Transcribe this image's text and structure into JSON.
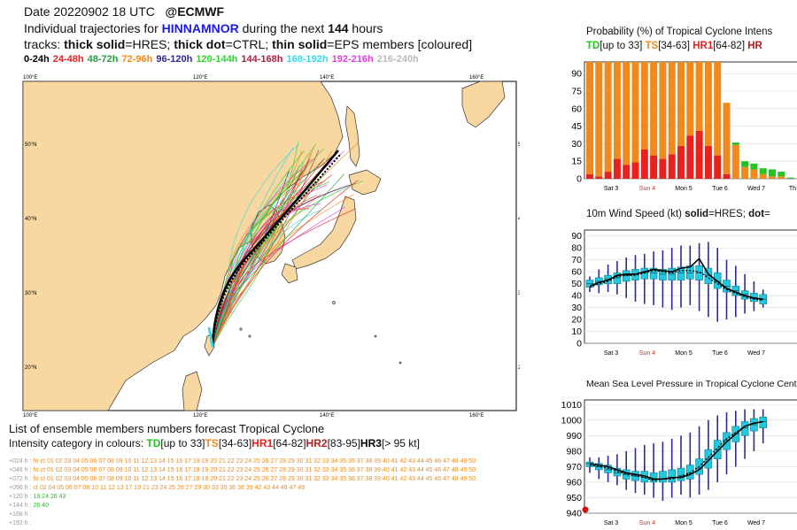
{
  "header": {
    "date_line": "Date 20220902 18 UTC",
    "source": "@ECMWF",
    "line2_prefix": "Individual trajectories for",
    "storm_name": "HINNAMNOR",
    "line2_mid": "during the next",
    "hours": "144",
    "line2_suffix": "hours",
    "line3_prefix": "tracks:",
    "thick_solid": "thick solid",
    "hres": "=HRES;",
    "thick_dot": "thick dot",
    "ctrl": "=CTRL;",
    "thin_solid": "thin solid",
    "eps": "=EPS members [coloured]"
  },
  "time_legend": [
    {
      "label": "0-24h",
      "color": "#000000"
    },
    {
      "label": "24-48h",
      "color": "#e8201e"
    },
    {
      "label": "48-72h",
      "color": "#22a03a"
    },
    {
      "label": "72-96h",
      "color": "#f08a1c"
    },
    {
      "label": "96-120h",
      "color": "#2a2a9a"
    },
    {
      "label": "120-144h",
      "color": "#32d232"
    },
    {
      "label": "144-168h",
      "color": "#b01e3c"
    },
    {
      "label": "168-192h",
      "color": "#3ad8e8"
    },
    {
      "label": "192-216h",
      "color": "#e040e0"
    },
    {
      "label": "216-240h",
      "color": "#bbbbbb"
    }
  ],
  "map": {
    "lon_labels": [
      "100°E",
      "120°E",
      "140°E",
      "160°E"
    ],
    "lat_labels": [
      "50°N",
      "40°N",
      "30°N",
      "20°N"
    ]
  },
  "bottom": {
    "line1": "List of ensemble members numbers forecast Tropical Cyclone",
    "line2_prefix": "Intensity category in colours:",
    "cats": [
      {
        "name": "TD",
        "range": "[up to 33]",
        "color": "#22c322"
      },
      {
        "name": "TS",
        "range": "[34-63]",
        "color": "#f08a1c"
      },
      {
        "name": "HR1",
        "range": "[64-82]",
        "color": "#e8201e"
      },
      {
        "name": "HR2",
        "range": "[83-95]",
        "color": "#b01e1e"
      },
      {
        "name": "HR3",
        "range": "[> 95 kt]",
        "color": "#000000"
      }
    ],
    "rows": [
      {
        "label": "+024 h :",
        "text": "hr ct 01 02 03 04 05 06 07 08 09 10 11 12 13 14 15 16 17 18 19 20 21 22 23 24 25 26 27 28 29 30 31 32 33 34 35 36 37 38 39 40 41 42 43 44 45 46 47 48 49 50"
      },
      {
        "label": "+048 h :",
        "text": "hr ct 01 02 03 04 05 06 07 08 09 10 11 12 13 14 15 16 17 18 19 20 21 22 23 24 25 26 27 28 29 30 31 32 33 34 35 36 37 38 39 40 41 42 43 44 45 46 47 48 49 50"
      },
      {
        "label": "+072 h :",
        "text": "hr ct 01 02 03 04 05 06 07 08 09 10 11 12 13 14 15 16 17 18 19 20 21 22 23 24 25 26 27 28 29 30 31 32 33 34 35 36 37 38 39 40 41 42 43 44 45 46 47 48 49 50"
      },
      {
        "label": "+096 h :",
        "text": "ct 02 04 05 06 07 08 10 11 12 13 17 19 21 23 24 25 26 27 29 30 33 35 36 38 39 42 43 44 46 47 49"
      },
      {
        "label": "+120 h :",
        "text": "19 24 26 43"
      },
      {
        "label": "+144 h :",
        "text": "26 40"
      },
      {
        "label": "+168 h :",
        "text": ""
      },
      {
        "label": "+192 h :",
        "text": ""
      }
    ]
  },
  "chart_data": [
    {
      "type": "bar",
      "title": "Probability (%) of Tropical Cyclone Intens",
      "legend": [
        {
          "name": "TD",
          "range": "[up to 33]",
          "color": "#22c322"
        },
        {
          "name": "TS",
          "range": "[34-63]",
          "color": "#f08a1c"
        },
        {
          "name": "HR1",
          "range": "[64-82]",
          "color": "#e8201e"
        },
        {
          "name": "HR",
          "range": "",
          "color": "#b01e1e"
        }
      ],
      "ylim": [
        0,
        100
      ],
      "yticks": [
        0,
        15,
        30,
        45,
        60,
        75,
        90
      ],
      "xlabels": [
        {
          "label": "Sat 3",
          "color": "#000000"
        },
        {
          "label": "Sun 4",
          "color": "#e8201e"
        },
        {
          "label": "Mon 5",
          "color": "#000000"
        },
        {
          "label": "Tue 6",
          "color": "#000000"
        },
        {
          "label": "Wed 7",
          "color": "#000000"
        },
        {
          "label": "Th",
          "color": "#000000"
        }
      ],
      "series": [
        {
          "name": "HR1",
          "color": "#e8201e",
          "values": [
            4,
            2,
            6,
            17,
            12,
            14,
            25,
            20,
            17,
            21,
            28,
            37,
            41,
            28,
            20,
            4,
            0,
            0,
            0,
            0,
            0,
            0,
            0
          ]
        },
        {
          "name": "TS",
          "color": "#f08a1c",
          "values": [
            96,
            98,
            94,
            83,
            88,
            86,
            75,
            80,
            83,
            79,
            72,
            63,
            59,
            72,
            80,
            61,
            29,
            10,
            8,
            4,
            2,
            2,
            0
          ]
        },
        {
          "name": "TD",
          "color": "#22c322",
          "values": [
            0,
            0,
            0,
            0,
            0,
            0,
            0,
            0,
            0,
            0,
            0,
            0,
            0,
            0,
            0,
            0,
            2,
            5,
            5,
            5,
            6,
            4,
            1
          ]
        }
      ]
    },
    {
      "type": "line",
      "title": "10m Wind Speed (kt)",
      "title_parts": {
        "solid": "solid",
        "hres": "=HRES;",
        "dot": "dot",
        "rest": "="
      },
      "ylim": [
        0,
        95
      ],
      "yticks": [
        0,
        10,
        20,
        30,
        40,
        50,
        60,
        70,
        80,
        90
      ],
      "xlabels": [
        {
          "label": "Sat 3",
          "color": "#000000"
        },
        {
          "label": "Sun 4",
          "color": "#e8201e"
        },
        {
          "label": "Mon 5",
          "color": "#000000"
        },
        {
          "label": "Tue 6",
          "color": "#000000"
        },
        {
          "label": "Wed 7",
          "color": "#000000"
        }
      ],
      "box_color": "#22c8e0",
      "boxes": [
        {
          "t": 0,
          "min": 43,
          "q1": 47,
          "med": 50,
          "q3": 53,
          "max": 56
        },
        {
          "t": 1,
          "min": 42,
          "q1": 49,
          "med": 52,
          "q3": 55,
          "max": 62
        },
        {
          "t": 2,
          "min": 43,
          "q1": 50,
          "med": 54,
          "q3": 57,
          "max": 66
        },
        {
          "t": 3,
          "min": 41,
          "q1": 50,
          "med": 55,
          "q3": 59,
          "max": 69
        },
        {
          "t": 4,
          "min": 38,
          "q1": 52,
          "med": 57,
          "q3": 61,
          "max": 72
        },
        {
          "t": 5,
          "min": 35,
          "q1": 53,
          "med": 58,
          "q3": 62,
          "max": 74
        },
        {
          "t": 6,
          "min": 33,
          "q1": 54,
          "med": 59,
          "q3": 63,
          "max": 75
        },
        {
          "t": 7,
          "min": 32,
          "q1": 54,
          "med": 59,
          "q3": 63,
          "max": 77
        },
        {
          "t": 8,
          "min": 30,
          "q1": 53,
          "med": 58,
          "q3": 62,
          "max": 78
        },
        {
          "t": 9,
          "min": 28,
          "q1": 53,
          "med": 58,
          "q3": 63,
          "max": 80
        },
        {
          "t": 10,
          "min": 30,
          "q1": 53,
          "med": 59,
          "q3": 64,
          "max": 82
        },
        {
          "t": 11,
          "min": 32,
          "q1": 54,
          "med": 59,
          "q3": 65,
          "max": 82
        },
        {
          "t": 12,
          "min": 27,
          "q1": 53,
          "med": 59,
          "q3": 65,
          "max": 84
        },
        {
          "t": 13,
          "min": 22,
          "q1": 50,
          "med": 57,
          "q3": 63,
          "max": 85
        },
        {
          "t": 14,
          "min": 18,
          "q1": 46,
          "med": 52,
          "q3": 59,
          "max": 80
        },
        {
          "t": 15,
          "min": 20,
          "q1": 43,
          "med": 48,
          "q3": 53,
          "max": 70
        },
        {
          "t": 16,
          "min": 22,
          "q1": 40,
          "med": 44,
          "q3": 48,
          "max": 65
        },
        {
          "t": 17,
          "min": 25,
          "q1": 37,
          "med": 41,
          "q3": 44,
          "max": 58
        },
        {
          "t": 18,
          "min": 27,
          "q1": 35,
          "med": 38,
          "q3": 42,
          "max": 52
        },
        {
          "t": 19,
          "min": 30,
          "q1": 33,
          "med": 37,
          "q3": 41,
          "max": 45
        }
      ],
      "hres": [
        48,
        51,
        53,
        57,
        58,
        58,
        60,
        62,
        61,
        60,
        63,
        64,
        71,
        58,
        52,
        46,
        43,
        40,
        38,
        37
      ],
      "ctrl": [
        47,
        50,
        52,
        56,
        57,
        57,
        59,
        61,
        60,
        59,
        61,
        61,
        60,
        55,
        50,
        45,
        42,
        39,
        37,
        36
      ]
    },
    {
      "type": "line",
      "title": "Mean Sea Level Pressure in Tropical Cyclone Cent",
      "ylim": [
        940,
        1013
      ],
      "yticks": [
        940,
        950,
        960,
        970,
        980,
        990,
        1000,
        1010
      ],
      "xlabels": [
        {
          "label": "Sat 3",
          "color": "#000000"
        },
        {
          "label": "Sun 4",
          "color": "#e8201e"
        },
        {
          "label": "Mon 5",
          "color": "#000000"
        },
        {
          "label": "Tue 6",
          "color": "#000000"
        },
        {
          "label": "Wed 7",
          "color": "#000000"
        }
      ],
      "box_color": "#22c8e0",
      "boxes": [
        {
          "t": 0,
          "min": 966,
          "q1": 970,
          "med": 972,
          "q3": 973,
          "max": 976
        },
        {
          "t": 1,
          "min": 962,
          "q1": 968,
          "med": 970,
          "q3": 972,
          "max": 976
        },
        {
          "t": 2,
          "min": 960,
          "q1": 966,
          "med": 968,
          "q3": 971,
          "max": 977
        },
        {
          "t": 3,
          "min": 958,
          "q1": 964,
          "med": 966,
          "q3": 969,
          "max": 978
        },
        {
          "t": 4,
          "min": 955,
          "q1": 962,
          "med": 965,
          "q3": 968,
          "max": 980
        },
        {
          "t": 5,
          "min": 953,
          "q1": 961,
          "med": 964,
          "q3": 967,
          "max": 982
        },
        {
          "t": 6,
          "min": 952,
          "q1": 960,
          "med": 963,
          "q3": 967,
          "max": 984
        },
        {
          "t": 7,
          "min": 950,
          "q1": 960,
          "med": 962,
          "q3": 966,
          "max": 985
        },
        {
          "t": 8,
          "min": 948,
          "q1": 960,
          "med": 962,
          "q3": 967,
          "max": 986
        },
        {
          "t": 9,
          "min": 950,
          "q1": 960,
          "med": 963,
          "q3": 968,
          "max": 988
        },
        {
          "t": 10,
          "min": 952,
          "q1": 961,
          "med": 964,
          "q3": 969,
          "max": 990
        },
        {
          "t": 11,
          "min": 950,
          "q1": 962,
          "med": 966,
          "q3": 971,
          "max": 992
        },
        {
          "t": 12,
          "min": 952,
          "q1": 965,
          "med": 969,
          "q3": 975,
          "max": 996
        },
        {
          "t": 13,
          "min": 955,
          "q1": 969,
          "med": 975,
          "q3": 981,
          "max": 1000
        },
        {
          "t": 14,
          "min": 960,
          "q1": 975,
          "med": 981,
          "q3": 987,
          "max": 1003
        },
        {
          "t": 15,
          "min": 965,
          "q1": 981,
          "med": 987,
          "q3": 992,
          "max": 1005
        },
        {
          "t": 16,
          "min": 970,
          "q1": 986,
          "med": 991,
          "q3": 996,
          "max": 1006
        },
        {
          "t": 17,
          "min": 975,
          "q1": 990,
          "med": 995,
          "q3": 999,
          "max": 1007
        },
        {
          "t": 18,
          "min": 980,
          "q1": 993,
          "med": 997,
          "q3": 1001,
          "max": 1007
        },
        {
          "t": 19,
          "min": 985,
          "q1": 995,
          "med": 999,
          "q3": 1002,
          "max": 1007
        }
      ],
      "hres": [
        972,
        971,
        970,
        968,
        966,
        965,
        964,
        962,
        962,
        963,
        963,
        965,
        968,
        974,
        980,
        986,
        991,
        996,
        998,
        999
      ],
      "ctrl": [
        971,
        970,
        969,
        967,
        965,
        964,
        963,
        961,
        962,
        962,
        964,
        966,
        970,
        976,
        982,
        988,
        992,
        996,
        998,
        999
      ],
      "obs_color": "#d01010"
    }
  ]
}
